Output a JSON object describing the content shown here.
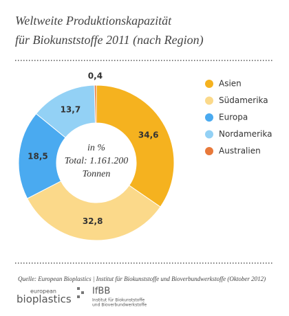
{
  "chart_data": {
    "type": "pie",
    "title": [
      "Weltweite Produktionskapazität",
      "für Biokunststoffe 2011 (nach Region)"
    ],
    "categories": [
      "Asien",
      "Südamerika",
      "Europa",
      "Nordamerika",
      "Australien"
    ],
    "values": [
      34.6,
      32.8,
      18.5,
      13.7,
      0.4
    ],
    "value_labels": [
      "34,6",
      "32,8",
      "18,5",
      "13,7",
      "0,4"
    ],
    "colors": [
      "#f5b21f",
      "#fbd98a",
      "#4aaaf0",
      "#93d1f5",
      "#e8793a"
    ],
    "center_labels": [
      "in %",
      "Total: 1.161.200",
      "Tonnen"
    ],
    "source": "Quelle: European Bioplastics | Institut für Biokunststoffe und Bioverbundwerkstoffe (Oktober 2012)"
  },
  "logos": {
    "eb_small": "european",
    "eb_large": "bioplastics",
    "ifbb": "IfBB",
    "ifbb_line1": "Institut für Biokunststoffe",
    "ifbb_line2": "und Bioverbundwerkstoffe"
  }
}
